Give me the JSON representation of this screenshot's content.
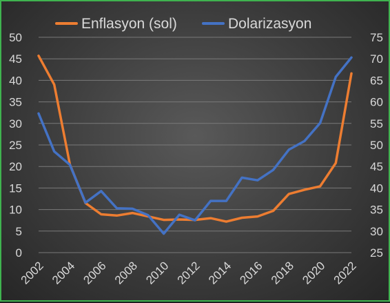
{
  "chart_data": {
    "type": "line",
    "x": [
      2002,
      2003,
      2004,
      2005,
      2006,
      2007,
      2008,
      2009,
      2010,
      2011,
      2012,
      2013,
      2014,
      2015,
      2016,
      2017,
      2018,
      2019,
      2020,
      2021,
      2022
    ],
    "x_tick_labels": [
      "2002",
      "2004",
      "2006",
      "2008",
      "2010",
      "2012",
      "2014",
      "2016",
      "2018",
      "2020",
      "2022"
    ],
    "y_left": {
      "ylim": [
        0,
        50
      ],
      "ticks": [
        "0",
        "5",
        "10",
        "15",
        "20",
        "25",
        "30",
        "35",
        "40",
        "45",
        "50"
      ]
    },
    "y_right": {
      "ylim": [
        25,
        75
      ],
      "ticks": [
        "25",
        "30",
        "35",
        "40",
        "45",
        "50",
        "55",
        "60",
        "65",
        "70",
        "75"
      ]
    },
    "series": [
      {
        "name": "Enflasyon (sol)",
        "axis": "left",
        "color": "#ed7d31",
        "values": [
          45.7,
          39.0,
          20.5,
          11.5,
          8.9,
          8.6,
          9.2,
          8.4,
          7.6,
          7.7,
          7.6,
          8.0,
          7.2,
          8.1,
          8.4,
          9.7,
          13.6,
          14.6,
          15.4,
          20.8,
          41.6
        ]
      },
      {
        "name": "Dolarizasyon",
        "axis": "right",
        "color": "#4472c4",
        "values": [
          57.3,
          48.5,
          45.4,
          36.6,
          39.3,
          35.3,
          35.2,
          33.7,
          29.4,
          33.8,
          32.5,
          37.0,
          37.0,
          42.4,
          41.8,
          44.2,
          48.9,
          50.9,
          55.1,
          65.8,
          70.3
        ]
      }
    ],
    "legend_position": "top",
    "grid": true,
    "colors": {
      "grid": "#7a7a7a",
      "text": "#d9d9d9"
    }
  }
}
